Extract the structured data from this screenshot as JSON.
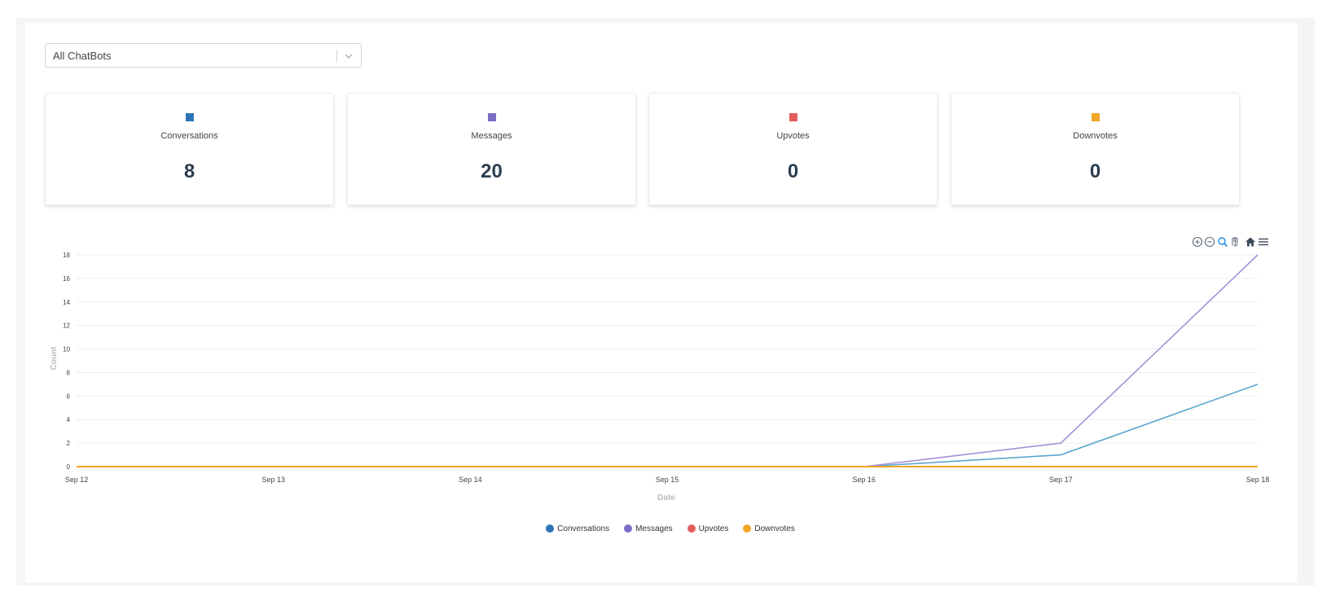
{
  "selector": {
    "value": "All ChatBots"
  },
  "cards": [
    {
      "label": "Conversations",
      "value": "8",
      "color": "#2e75b6"
    },
    {
      "label": "Messages",
      "value": "20",
      "color": "#7b6cc4"
    },
    {
      "label": "Upvotes",
      "value": "0",
      "color": "#e35d5d"
    },
    {
      "label": "Downvotes",
      "value": "0",
      "color": "#f2a528"
    }
  ],
  "toolbar": {
    "icons": [
      "zoom-in-icon",
      "zoom-out-icon",
      "selection-zoom-icon",
      "pan-hand-icon",
      "reset-home-icon",
      "menu-icon"
    ]
  },
  "chart_data": {
    "type": "line",
    "x": [
      "Sep 12",
      "Sep 13",
      "Sep 14",
      "Sep 15",
      "Sep 16",
      "Sep 17",
      "Sep 18"
    ],
    "series": [
      {
        "name": "Conversations",
        "values": [
          0,
          0,
          0,
          0,
          0,
          1,
          7
        ],
        "color": "#5ba6d0"
      },
      {
        "name": "Messages",
        "values": [
          0,
          0,
          0,
          0,
          0,
          2,
          18
        ],
        "color": "#a58fd8"
      },
      {
        "name": "Upvotes",
        "values": [
          0,
          0,
          0,
          0,
          0,
          0,
          0
        ],
        "color": "#e35d5d"
      },
      {
        "name": "Downvotes",
        "values": [
          0,
          0,
          0,
          0,
          0,
          0,
          0
        ],
        "color": "#f2a528"
      }
    ],
    "legend_colors": [
      "#2e75b6",
      "#7b6cc4",
      "#e35d5d",
      "#f2a528"
    ],
    "xlabel": "Date",
    "ylabel": "Count",
    "ylim": [
      0,
      18
    ],
    "yticks": [
      0,
      2,
      4,
      6,
      8,
      10,
      12,
      14,
      16,
      18
    ],
    "grid": true,
    "legend_position": "bottom-center"
  }
}
